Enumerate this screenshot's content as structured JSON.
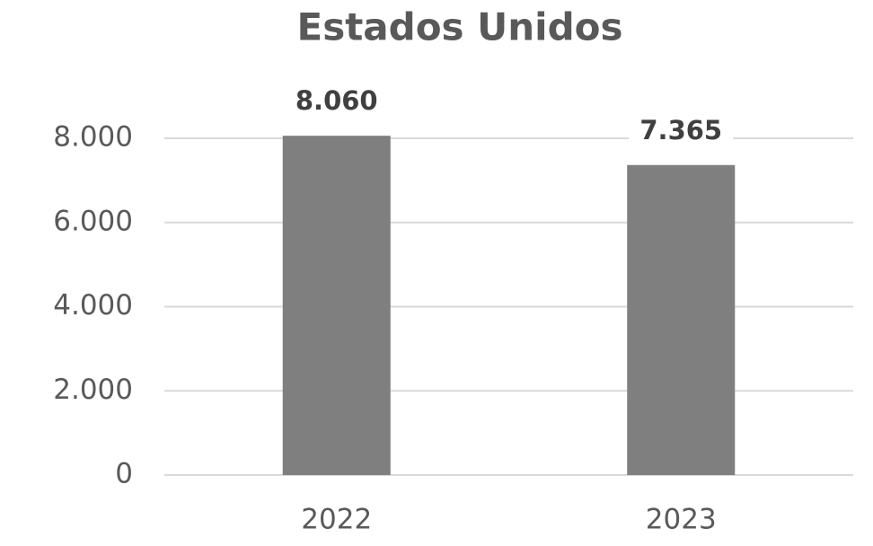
{
  "chart_data": {
    "type": "bar",
    "title": "Estados Unidos",
    "categories": [
      "2022",
      "2023"
    ],
    "values": [
      8060,
      7365
    ],
    "value_labels": [
      "8.060",
      "7.365"
    ],
    "color": "#7f7f7f",
    "ylim": [
      0,
      8000
    ],
    "yticks": [
      0,
      {
        "value": 2000,
        "label": "2.000"
      },
      {
        "value": 4000,
        "label": "4.000"
      },
      {
        "value": 6000,
        "label": "6.000"
      },
      {
        "value": 8000,
        "label": "8.000"
      }
    ],
    "grid": true
  }
}
